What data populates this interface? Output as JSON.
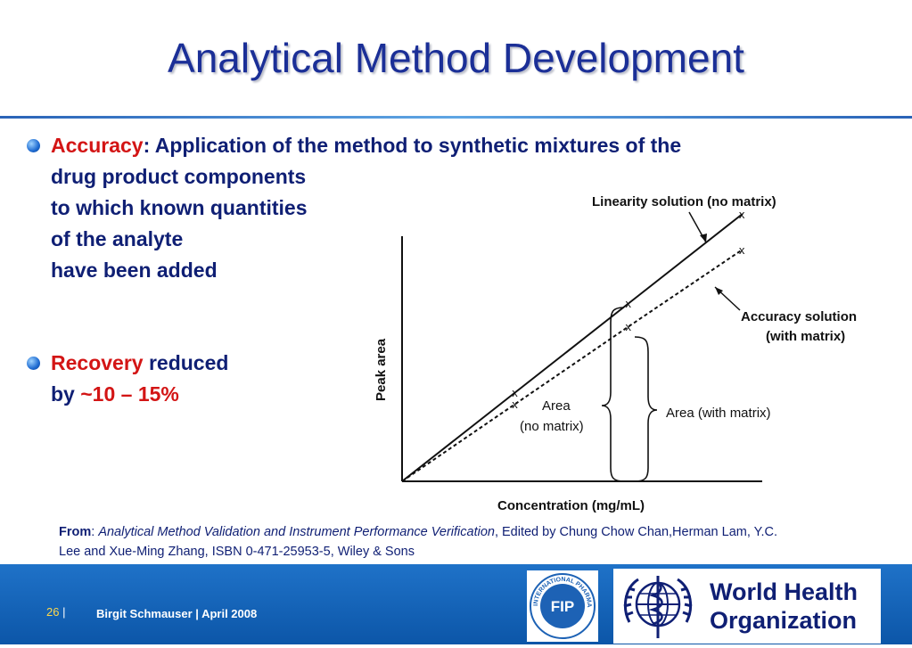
{
  "slide": {
    "title": "Analytical Method Development"
  },
  "bullets": [
    {
      "keyword": "Accuracy",
      "text_line1": ": Application of the method to synthetic mixtures of the",
      "line2": "drug product components",
      "line3": "to which known quantities",
      "line4": "of the analyte",
      "line5": "have been added"
    },
    {
      "keyword": "Recovery",
      "after_keyword": " reduced",
      "line2_prefix": "by ",
      "line2_value": "~10 – 15%"
    }
  ],
  "chart": {
    "label_linearity": "Linearity solution (no matrix)",
    "label_accuracy_1": "Accuracy solution",
    "label_accuracy_2": "(with matrix)",
    "label_area_no_1": "Area",
    "label_area_no_2": "(no matrix)",
    "label_area_with": "Area (with matrix)",
    "ylabel": "Peak area",
    "xlabel": "Concentration (mg/mL)",
    "marker": "x"
  },
  "chart_data": {
    "type": "line",
    "xlabel": "Concentration (mg/mL)",
    "ylabel": "Peak area",
    "series": [
      {
        "name": "Linearity solution (no matrix)",
        "style": "solid",
        "x": [
          0,
          1,
          2,
          3
        ],
        "y": [
          0,
          1,
          2,
          3
        ]
      },
      {
        "name": "Accuracy solution (with matrix)",
        "style": "dashed",
        "x": [
          0,
          1,
          2,
          3
        ],
        "y": [
          0,
          0.87,
          1.74,
          2.6
        ]
      }
    ]
  },
  "source": {
    "from_label": "From",
    "colon": ": ",
    "book_title": "Analytical Method Validation and Instrument Performance Verification",
    "rest_line1": ", Edited by Chung Chow Chan,Herman Lam, Y.C.",
    "line2": "Lee and Xue-Ming Zhang, ISBN 0-471-25953-5, Wiley & Sons"
  },
  "footer": {
    "page_number": "26",
    "separator": "|",
    "author": "Birgit Schmauser",
    "date": "April 2008",
    "fip_text": "FIP",
    "fip_ring_text": "INTERNATIONAL PHARMACEUTICAL FEDERATION",
    "who_line1": "World Health",
    "who_line2": "Organization"
  },
  "colors": {
    "title": "#1b2f97",
    "body_text": "#0f1f74",
    "highlight": "#d31515",
    "footer_bg": "#0c56a8",
    "page_number": "#ffd84a"
  }
}
